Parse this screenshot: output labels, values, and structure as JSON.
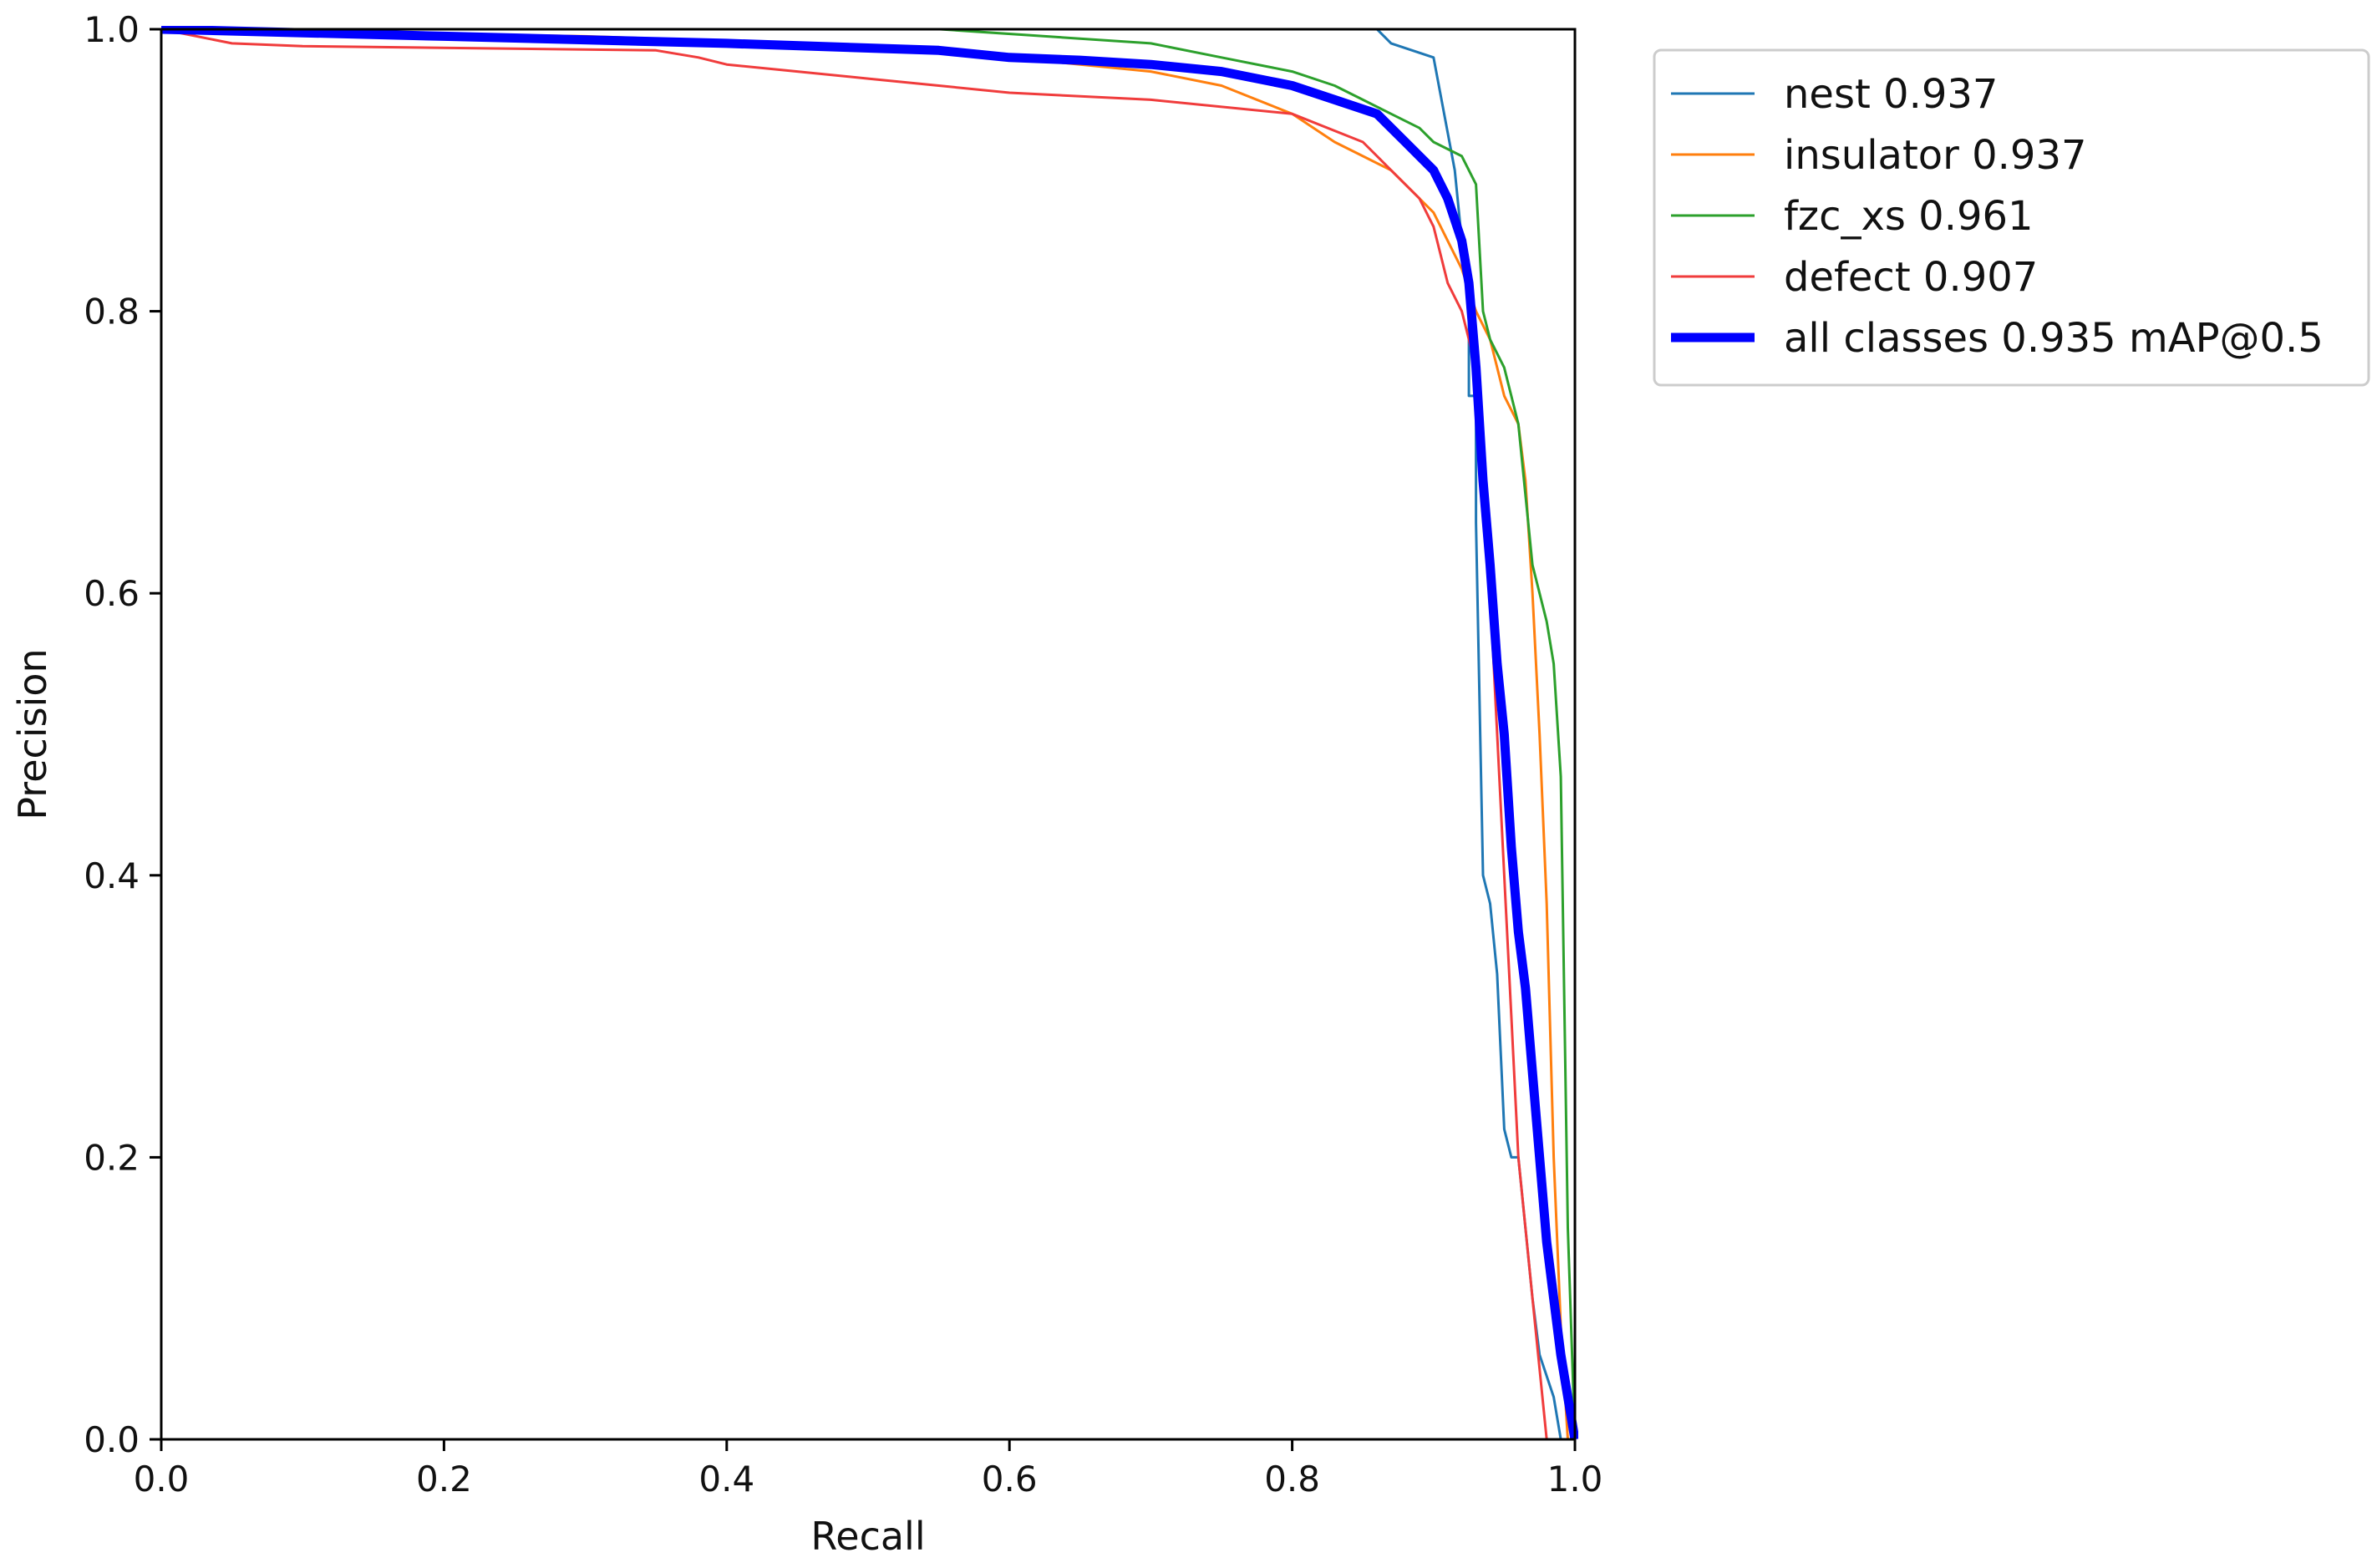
{
  "chart_data": {
    "type": "line",
    "title": "",
    "xlabel": "Recall",
    "ylabel": "Precision",
    "xlim": [
      0.0,
      1.0
    ],
    "ylim": [
      0.0,
      1.0
    ],
    "xticks": [
      "0.0",
      "0.2",
      "0.4",
      "0.6",
      "0.8",
      "1.0"
    ],
    "yticks": [
      "0.0",
      "0.2",
      "0.4",
      "0.6",
      "0.8",
      "1.0"
    ],
    "grid": false,
    "legend_position": "outside-top-right",
    "series": [
      {
        "name": "nest 0.937",
        "color": "#1f77b4",
        "x": [
          0.0,
          0.55,
          0.86,
          0.87,
          0.9,
          0.915,
          0.92,
          0.925,
          0.925,
          0.93,
          0.93,
          0.935,
          0.94,
          0.945,
          0.95,
          0.955,
          0.96,
          0.97,
          0.975,
          0.985,
          0.99
        ],
        "y": [
          1.0,
          1.0,
          1.0,
          0.99,
          0.98,
          0.9,
          0.85,
          0.8,
          0.74,
          0.74,
          0.65,
          0.4,
          0.38,
          0.33,
          0.22,
          0.2,
          0.2,
          0.1,
          0.06,
          0.03,
          0.0
        ]
      },
      {
        "name": "insulator 0.937",
        "color": "#ff7f0e",
        "x": [
          0.0,
          0.3,
          0.45,
          0.55,
          0.6,
          0.7,
          0.75,
          0.8,
          0.83,
          0.85,
          0.87,
          0.88,
          0.89,
          0.9,
          0.905,
          0.91,
          0.92,
          0.93,
          0.94,
          0.95,
          0.96,
          0.965,
          0.97,
          0.975,
          0.98,
          0.985,
          0.99,
          0.995
        ],
        "y": [
          1.0,
          0.995,
          0.99,
          0.985,
          0.98,
          0.97,
          0.96,
          0.94,
          0.92,
          0.91,
          0.9,
          0.89,
          0.88,
          0.87,
          0.86,
          0.85,
          0.83,
          0.8,
          0.78,
          0.74,
          0.72,
          0.68,
          0.6,
          0.5,
          0.38,
          0.2,
          0.08,
          0.0
        ]
      },
      {
        "name": "fzc_xs 0.961",
        "color": "#2ca02c",
        "x": [
          0.0,
          0.55,
          0.551,
          0.7,
          0.75,
          0.8,
          0.83,
          0.85,
          0.87,
          0.89,
          0.9,
          0.92,
          0.925,
          0.93,
          0.935,
          0.94,
          0.95,
          0.96,
          0.97,
          0.98,
          0.985,
          0.99,
          0.995,
          1.0
        ],
        "y": [
          1.0,
          1.0,
          1.0,
          0.99,
          0.98,
          0.97,
          0.96,
          0.95,
          0.94,
          0.93,
          0.92,
          0.91,
          0.9,
          0.89,
          0.8,
          0.78,
          0.76,
          0.72,
          0.62,
          0.58,
          0.55,
          0.47,
          0.15,
          0.0
        ]
      },
      {
        "name": "defect 0.907",
        "color": "#f03c3c",
        "x": [
          0.0,
          0.05,
          0.1,
          0.35,
          0.38,
          0.4,
          0.45,
          0.5,
          0.55,
          0.6,
          0.7,
          0.8,
          0.85,
          0.87,
          0.89,
          0.9,
          0.905,
          0.91,
          0.92,
          0.93,
          0.94,
          0.95,
          0.955,
          0.96,
          0.965,
          0.97,
          0.975,
          0.98
        ],
        "y": [
          1.0,
          0.99,
          0.988,
          0.985,
          0.98,
          0.975,
          0.97,
          0.965,
          0.96,
          0.955,
          0.95,
          0.94,
          0.92,
          0.9,
          0.88,
          0.86,
          0.84,
          0.82,
          0.8,
          0.76,
          0.6,
          0.4,
          0.3,
          0.2,
          0.15,
          0.1,
          0.05,
          0.0
        ]
      },
      {
        "name": "all classes 0.935 mAP@0.5",
        "color": "#0000ff",
        "thick": true,
        "x": [
          0.0,
          0.2,
          0.4,
          0.55,
          0.6,
          0.65,
          0.7,
          0.75,
          0.8,
          0.83,
          0.86,
          0.88,
          0.9,
          0.91,
          0.92,
          0.925,
          0.93,
          0.935,
          0.94,
          0.945,
          0.95,
          0.955,
          0.96,
          0.965,
          0.97,
          0.975,
          0.98,
          0.985,
          0.99,
          0.995,
          1.0
        ],
        "y": [
          1.0,
          0.995,
          0.99,
          0.985,
          0.98,
          0.978,
          0.975,
          0.97,
          0.96,
          0.95,
          0.94,
          0.92,
          0.9,
          0.88,
          0.85,
          0.82,
          0.76,
          0.68,
          0.62,
          0.55,
          0.5,
          0.42,
          0.36,
          0.32,
          0.26,
          0.2,
          0.14,
          0.1,
          0.06,
          0.03,
          0.0
        ]
      }
    ]
  }
}
